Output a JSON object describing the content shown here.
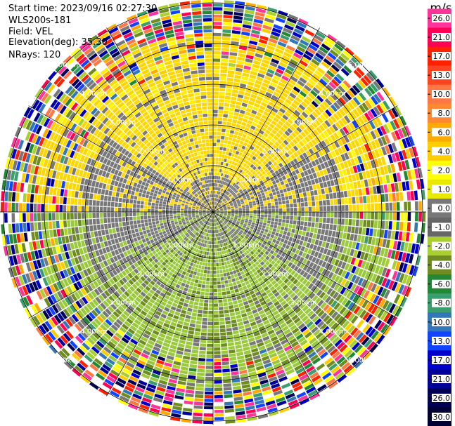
{
  "header": {
    "start_time": "Start time: 2023/09/16 02:27:30",
    "instrument": "WLS200s-181",
    "field": "Field: VEL",
    "elevation": "Elevation(deg): 35.30",
    "nrays": "NRays: 120"
  },
  "chart_data": {
    "type": "heatmap",
    "subtype": "ppi-polar",
    "field": "VEL",
    "rays": 120,
    "ring_labels": [
      "1.00km",
      "2.00km",
      "3.00km",
      "4.00km",
      "5.00km"
    ],
    "ring_label_angles_deg": [
      -135,
      -45,
      45,
      135
    ],
    "colorbar": {
      "unit": "m/s",
      "ticks": [
        "26.0",
        "21.0",
        "17.0",
        "13.0",
        "10.0",
        "8.0",
        "6.0",
        "4.0",
        "2.0",
        "1.0",
        "0.0",
        "-1.0",
        "-2.0",
        "-4.0",
        "-6.0",
        "-8.0",
        "-10.0",
        "-13.0",
        "-17.0",
        "-21.0",
        "-26.0",
        "-30.0"
      ],
      "colors": [
        "#ff3399",
        "#ff0055",
        "#ff2200",
        "#ff4422",
        "#ff7744",
        "#ff8833",
        "#ffaa00",
        "#ffcc00",
        "#ffff00",
        "#e8e800",
        "#787878",
        "#666666",
        "#aad030",
        "#6e8c20",
        "#228833",
        "#3a9e6e",
        "#3377bb",
        "#1144ff",
        "#0000cc",
        "#000099",
        "#000055",
        "#000033"
      ]
    },
    "regions": [
      {
        "range_km": [
          0,
          0.9
        ],
        "value": "mixed near-zero",
        "colors": [
          "#787878",
          "#9aca3c",
          "#ffd700"
        ]
      },
      {
        "range_km": [
          0.9,
          4.4
        ],
        "sector": "north",
        "value": 2.0,
        "color": "#ffd700"
      },
      {
        "range_km": [
          0.9,
          4.4
        ],
        "sector": "south",
        "value": -2.0,
        "color": "#9aca3c"
      },
      {
        "range_km": [
          0.9,
          4.4
        ],
        "sector": "east-west",
        "value": 0.0,
        "color": "#787878"
      },
      {
        "range_km": [
          4.4,
          6.2
        ],
        "value": "noise",
        "color": "multicolor"
      }
    ]
  }
}
